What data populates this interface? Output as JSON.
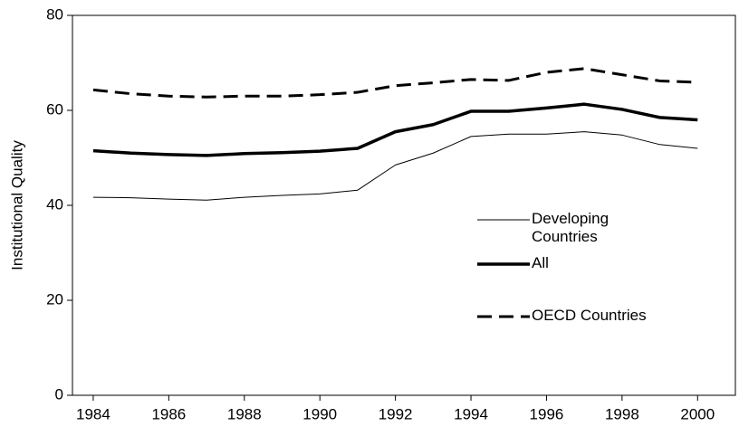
{
  "chart_data": {
    "type": "line",
    "y_label": "Institutional Quality",
    "x": [
      1984,
      1985,
      1986,
      1987,
      1988,
      1989,
      1990,
      1991,
      1992,
      1993,
      1994,
      1995,
      1996,
      1997,
      1998,
      1999,
      2000
    ],
    "series": [
      {
        "name": "Developing Countries",
        "color": "#000000",
        "width": 1,
        "dash": "solid",
        "values": [
          41.7,
          41.6,
          41.3,
          41.1,
          41.7,
          42.1,
          42.4,
          43.2,
          48.5,
          51,
          54.5,
          55,
          55,
          55.5,
          54.8,
          52.8,
          52
        ]
      },
      {
        "name": "All",
        "color": "#000000",
        "width": 3.5,
        "dash": "solid",
        "values": [
          51.5,
          51,
          50.7,
          50.5,
          50.9,
          51.1,
          51.4,
          52,
          55.5,
          57,
          59.8,
          59.8,
          60.5,
          61.3,
          60.2,
          58.5,
          58
        ]
      },
      {
        "name": "OECD Countries",
        "color": "#000000",
        "width": 3,
        "dash": "dashed",
        "values": [
          64.3,
          63.5,
          63,
          62.8,
          63,
          63,
          63.3,
          63.8,
          65.2,
          65.8,
          66.5,
          66.3,
          68,
          68.8,
          67.5,
          66.2,
          65.9
        ]
      }
    ],
    "xlim": [
      1983.45,
      2001
    ],
    "xticks": [
      1984,
      1986,
      1988,
      1990,
      1992,
      1994,
      1996,
      1998,
      2000
    ],
    "ylim": [
      0,
      80
    ],
    "yticks": [
      0,
      20,
      40,
      60,
      80
    ],
    "grid": false
  }
}
